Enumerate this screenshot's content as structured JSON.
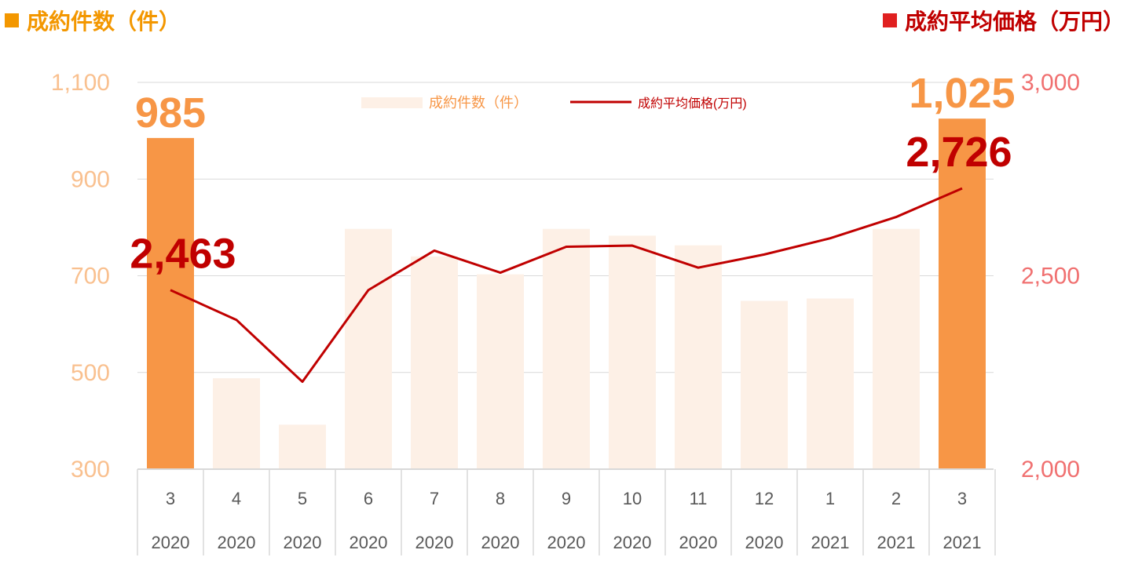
{
  "titles": {
    "left": "成約件数（件）",
    "right": "成約平均価格（万円）"
  },
  "colors": {
    "bar_highlight": "#f79646",
    "bar_light": "#fdf0e6",
    "line": "#c00000",
    "left_axis_text": "#f9c08f",
    "right_axis_text": "#f07070",
    "left_title": "#f39700",
    "right_title_marker": "#e02020",
    "grid": "#d9d9d9",
    "tick_text": "#595959"
  },
  "chart_data": {
    "type": "bar",
    "categories": [
      {
        "month": "3",
        "year": "2020"
      },
      {
        "month": "4",
        "year": "2020"
      },
      {
        "month": "5",
        "year": "2020"
      },
      {
        "month": "6",
        "year": "2020"
      },
      {
        "month": "7",
        "year": "2020"
      },
      {
        "month": "8",
        "year": "2020"
      },
      {
        "month": "9",
        "year": "2020"
      },
      {
        "month": "10",
        "year": "2020"
      },
      {
        "month": "11",
        "year": "2020"
      },
      {
        "month": "12",
        "year": "2020"
      },
      {
        "month": "1",
        "year": "2021"
      },
      {
        "month": "2",
        "year": "2021"
      },
      {
        "month": "3",
        "year": "2021"
      }
    ],
    "series": [
      {
        "name": "成約件数（件）",
        "type": "bar",
        "axis": "left",
        "values": [
          985,
          488,
          392,
          797,
          740,
          703,
          797,
          783,
          763,
          648,
          653,
          797,
          1025
        ],
        "highlight": [
          true,
          false,
          false,
          false,
          false,
          false,
          false,
          false,
          false,
          false,
          false,
          false,
          true
        ]
      },
      {
        "name": "成約平均価格(万円)",
        "type": "line",
        "axis": "right",
        "values": [
          2463,
          2386,
          2226,
          2463,
          2565,
          2508,
          2575,
          2578,
          2521,
          2555,
          2597,
          2652,
          2726
        ]
      }
    ],
    "y_left": {
      "min": 300,
      "max": 1100,
      "ticks": [
        "1,100",
        "900",
        "700",
        "500",
        "300"
      ]
    },
    "y_right": {
      "min": 2000,
      "max": 3000,
      "ticks": [
        "3,000",
        "2,500",
        "2,000"
      ]
    },
    "grid": true,
    "legend": "top-center",
    "data_labels": [
      {
        "text": "985",
        "series": "bar",
        "index": 0
      },
      {
        "text": "1,025",
        "series": "bar",
        "index": 12
      },
      {
        "text": "2,463",
        "series": "line",
        "index": 0
      },
      {
        "text": "2,726",
        "series": "line",
        "index": 12
      }
    ]
  }
}
